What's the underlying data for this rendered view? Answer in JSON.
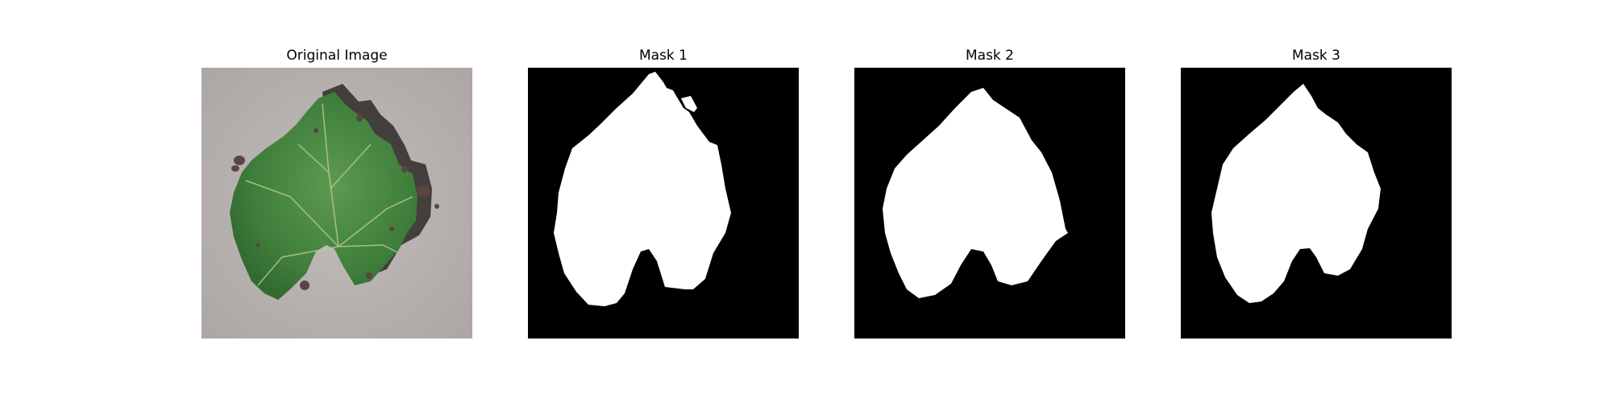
{
  "figure": {
    "panels": [
      {
        "title": "Original Image",
        "kind": "photo",
        "subject": "grape leaf with dark lesion spots on grey background"
      },
      {
        "title": "Mask 1",
        "kind": "mask"
      },
      {
        "title": "Mask 2",
        "kind": "mask"
      },
      {
        "title": "Mask 3",
        "kind": "mask"
      }
    ],
    "colors": {
      "mask_background": "#000000",
      "mask_foreground": "#ffffff",
      "photo_background": "#b4aeac",
      "leaf_green": "#3f7f3b",
      "leaf_light": "#5d9a51",
      "leaf_vein": "#b9c98a",
      "lesion": "#5a4540"
    }
  }
}
